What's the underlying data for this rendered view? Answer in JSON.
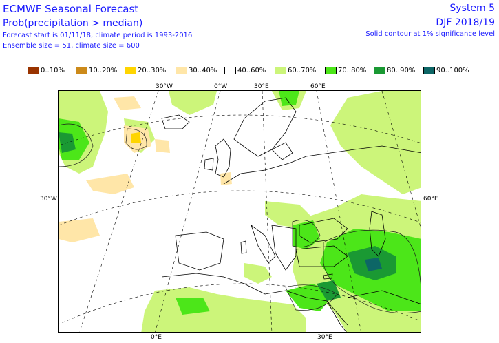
{
  "header": {
    "title": "ECMWF Seasonal Forecast",
    "subtitle": "Prob(precipitation > median)",
    "forecast_line": "Forecast start is 01/11/18, climate period is 1993-2016",
    "ensemble_line": "Ensemble size = 51, climate size = 600",
    "system": "System 5",
    "season": "DJF 2018/19",
    "note": "Solid contour at 1% significance level"
  },
  "legend": [
    {
      "label": "0..10%",
      "color": "#993300"
    },
    {
      "label": "10..20%",
      "color": "#cc8a1a"
    },
    {
      "label": "20..30%",
      "color": "#ffd500"
    },
    {
      "label": "30..40%",
      "color": "#ffe6a8"
    },
    {
      "label": "40..60%",
      "color": "#ffffff"
    },
    {
      "label": "60..70%",
      "color": "#ccf57a"
    },
    {
      "label": "70..80%",
      "color": "#4ce619"
    },
    {
      "label": "80..90%",
      "color": "#1a9933"
    },
    {
      "label": "90..100%",
      "color": "#0d6666"
    }
  ],
  "axis_labels": {
    "top": [
      "30°W",
      "0°W",
      "30°E",
      "60°E"
    ],
    "left": [
      "30°W"
    ],
    "right": [
      "60°E"
    ],
    "bottom": [
      "0°E",
      "30°E"
    ]
  }
}
